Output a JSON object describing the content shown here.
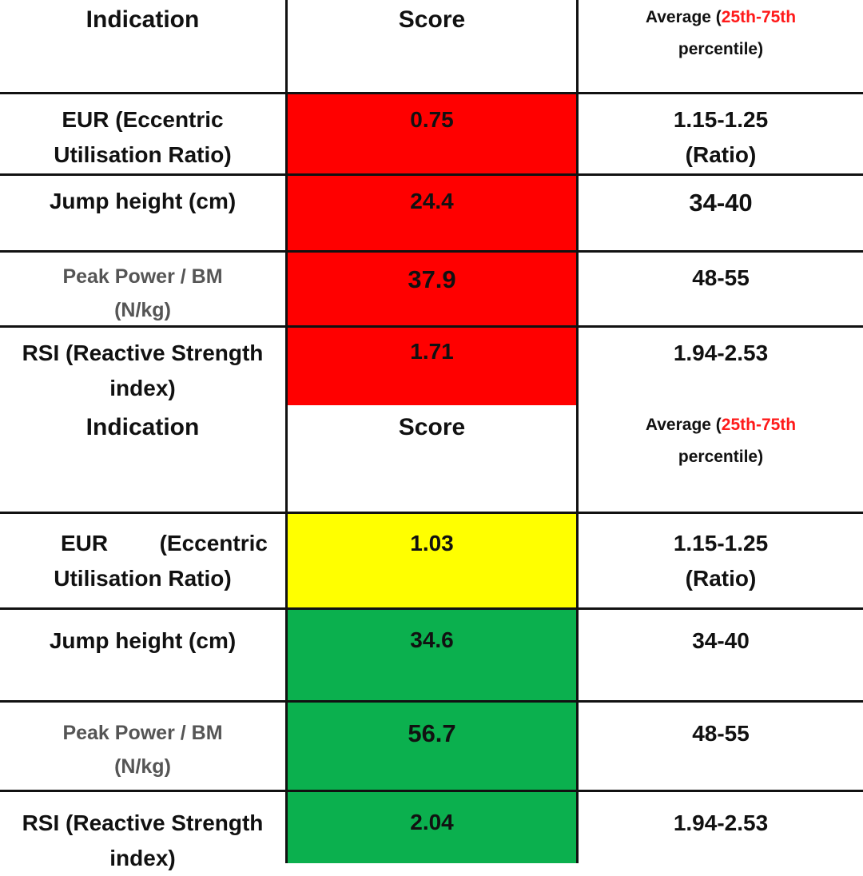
{
  "colors": {
    "red": "#ff0000",
    "yellow": "#ffff00",
    "green": "#0bb04e",
    "percentile_text": "#ff1a1a"
  },
  "table1": {
    "header": {
      "indication": "Indication",
      "score": "Score",
      "average_prefix": "Average (",
      "average_range": "25th-75th",
      "average_suffix": "percentile)"
    },
    "rows": [
      {
        "indication_line1": "EUR (Eccentric",
        "indication_line2": "Utilisation Ratio)",
        "score": "0.75",
        "average_line1": "1.15-1.25",
        "average_line2": "(Ratio)",
        "status": "red"
      },
      {
        "indication_line1": "Jump height (cm)",
        "score": "24.4",
        "average_line1": "34-40",
        "status": "red"
      },
      {
        "indication_line1": "Peak Power / BM",
        "indication_line2": "(N/kg)",
        "score": "37.9",
        "average_line1": "48-55",
        "status": "red"
      },
      {
        "indication_line1": "RSI (Reactive Strength",
        "indication_line2": "index)",
        "score": "1.71",
        "average_line1": "1.94-2.53",
        "status": "red"
      }
    ]
  },
  "table2": {
    "header": {
      "indication": "Indication",
      "score": "Score",
      "average_prefix": "Average (",
      "average_range": "25th-75th",
      "average_suffix": "percentile)"
    },
    "rows": [
      {
        "indication_word1": "EUR",
        "indication_word2": "(Eccentric",
        "indication_line2": "Utilisation Ratio)",
        "score": "1.03",
        "average_line1": "1.15-1.25",
        "average_line2": "(Ratio)",
        "status": "yellow"
      },
      {
        "indication_line1": "Jump height (cm)",
        "score": "34.6",
        "average_line1": "34-40",
        "status": "green"
      },
      {
        "indication_line1": "Peak Power / BM",
        "indication_line2": "(N/kg)",
        "score": "56.7",
        "average_line1": "48-55",
        "status": "green"
      },
      {
        "indication_line1": "RSI (Reactive Strength",
        "indication_line2": "index)",
        "score": "2.04",
        "average_line1": "1.94-2.53",
        "status": "green"
      }
    ]
  }
}
